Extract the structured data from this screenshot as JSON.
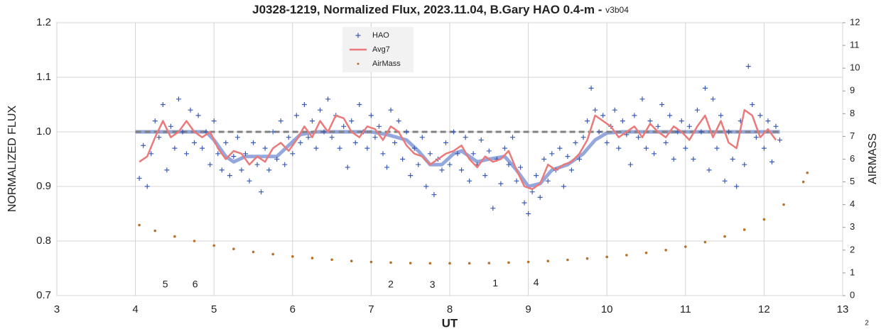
{
  "chart_data": {
    "type": "scatter",
    "title": "J0328-1219, Normalized Flux, 2023.11.04, B.Gary HAO 0.4-m -",
    "subtitle": "v3b04",
    "xlabel": "UT",
    "ylabel": "NORMALIZED FLUX",
    "y2label": "AIRMASS",
    "footnote": "2",
    "xlim": [
      3,
      13
    ],
    "xticks": [
      3,
      4,
      5,
      6,
      7,
      8,
      9,
      10,
      11,
      12,
      13
    ],
    "ylim": [
      0.7,
      1.2
    ],
    "yticks": [
      0.7,
      0.8,
      0.9,
      {
        "value": 1,
        "label": "1.0"
      },
      1.1,
      1.2
    ],
    "y2lim": [
      0,
      12
    ],
    "y2ticks": [
      0,
      1,
      2,
      3,
      4,
      5,
      6,
      7,
      8,
      9,
      10,
      11,
      12
    ],
    "grid": true,
    "legend": "top",
    "series": [
      {
        "name": "HAO",
        "kind": "scatter",
        "color": "#3b5bb5",
        "x": [
          4.05,
          4.1,
          4.15,
          4.2,
          4.25,
          4.3,
          4.35,
          4.4,
          4.45,
          4.5,
          4.55,
          4.6,
          4.65,
          4.7,
          4.75,
          4.8,
          4.85,
          4.9,
          4.95,
          5.0,
          5.05,
          5.1,
          5.15,
          5.2,
          5.25,
          5.3,
          5.35,
          5.4,
          5.45,
          5.5,
          5.55,
          5.6,
          5.65,
          5.7,
          5.75,
          5.8,
          5.85,
          5.9,
          5.95,
          6.0,
          6.05,
          6.1,
          6.15,
          6.2,
          6.25,
          6.3,
          6.35,
          6.4,
          6.45,
          6.5,
          6.55,
          6.6,
          6.65,
          6.7,
          6.75,
          6.8,
          6.85,
          6.9,
          6.95,
          7.0,
          7.05,
          7.1,
          7.15,
          7.2,
          7.25,
          7.3,
          7.35,
          7.4,
          7.45,
          7.5,
          7.55,
          7.6,
          7.65,
          7.7,
          7.75,
          7.8,
          7.85,
          7.9,
          7.95,
          8.0,
          8.05,
          8.1,
          8.15,
          8.2,
          8.25,
          8.3,
          8.35,
          8.4,
          8.45,
          8.5,
          8.55,
          8.6,
          8.65,
          8.7,
          8.75,
          8.8,
          8.85,
          8.9,
          8.95,
          9.0,
          9.05,
          9.1,
          9.15,
          9.2,
          9.25,
          9.3,
          9.35,
          9.4,
          9.45,
          9.5,
          9.55,
          9.6,
          9.65,
          9.7,
          9.75,
          9.8,
          9.85,
          9.9,
          9.95,
          10.0,
          10.05,
          10.1,
          10.15,
          10.2,
          10.25,
          10.3,
          10.35,
          10.4,
          10.45,
          10.5,
          10.55,
          10.6,
          10.65,
          10.7,
          10.75,
          10.8,
          10.85,
          10.9,
          10.95,
          11.0,
          11.05,
          11.1,
          11.15,
          11.2,
          11.25,
          11.3,
          11.35,
          11.4,
          11.45,
          11.5,
          11.55,
          11.6,
          11.65,
          11.7,
          11.75,
          11.8,
          11.85,
          11.9,
          11.95,
          12.0,
          12.05,
          12.1,
          12.15,
          12.2
        ],
        "values": [
          0.915,
          0.975,
          0.9,
          0.96,
          1.02,
          0.99,
          1.05,
          0.93,
          1.01,
          0.97,
          1.06,
          1.0,
          0.96,
          1.04,
          0.98,
          1.03,
          0.97,
          1.0,
          0.94,
          1.02,
          0.96,
          0.93,
          0.98,
          0.92,
          0.955,
          0.99,
          0.93,
          0.96,
          0.91,
          0.98,
          0.94,
          0.89,
          0.97,
          0.93,
          1.0,
          0.95,
          1.02,
          0.94,
          0.99,
          0.96,
          1.03,
          0.98,
          1.05,
          0.99,
          1.02,
          0.97,
          1.04,
          1.0,
          1.06,
          0.99,
          1.03,
          0.97,
          1.01,
          0.935,
          1.02,
          0.98,
          1.05,
          1.0,
          0.97,
          1.03,
          0.99,
          1.01,
          0.96,
          0.935,
          1.04,
          0.98,
          1.02,
          0.95,
          1.0,
          0.92,
          0.97,
          0.94,
          0.99,
          0.9,
          0.96,
          0.885,
          0.95,
          0.93,
          0.98,
          0.94,
          1.0,
          0.96,
          0.93,
          0.99,
          0.91,
          0.96,
          0.94,
          0.985,
          0.92,
          0.965,
          0.86,
          0.95,
          0.905,
          0.97,
          0.94,
          0.99,
          0.91,
          0.935,
          0.87,
          0.85,
          0.89,
          0.92,
          0.88,
          0.95,
          0.91,
          0.96,
          0.93,
          0.97,
          0.9,
          0.955,
          0.93,
          0.98,
          0.95,
          0.99,
          1.02,
          1.08,
          1.04,
          1.0,
          1.03,
          0.98,
          1.01,
          1.04,
          0.97,
          1.02,
          0.995,
          0.94,
          1.03,
          0.99,
          1.06,
          0.97,
          1.02,
          0.96,
          1.01,
          1.05,
          0.98,
          1.03,
          0.95,
          1.0,
          1.02,
          0.97,
          1.01,
          0.95,
          1.04,
          1.0,
          1.08,
          0.93,
          1.06,
          0.97,
          1.03,
          0.91,
          1.0,
          0.95,
          0.9,
          1.02,
          0.94,
          1.12,
          1.05,
          0.99,
          1.03,
          0.97,
          1.02,
          0.945,
          1.01,
          0.985
        ]
      },
      {
        "name": "Avg7",
        "kind": "line",
        "color": "#ea7a7a",
        "x": [
          4.05,
          4.15,
          4.25,
          4.35,
          4.45,
          4.55,
          4.65,
          4.75,
          4.85,
          4.95,
          5.05,
          5.15,
          5.25,
          5.35,
          5.45,
          5.55,
          5.65,
          5.75,
          5.85,
          5.95,
          6.05,
          6.15,
          6.25,
          6.35,
          6.45,
          6.55,
          6.65,
          6.75,
          6.85,
          6.95,
          7.05,
          7.15,
          7.25,
          7.35,
          7.45,
          7.55,
          7.65,
          7.75,
          7.85,
          7.95,
          8.05,
          8.15,
          8.25,
          8.35,
          8.45,
          8.55,
          8.65,
          8.75,
          8.85,
          8.95,
          9.05,
          9.15,
          9.25,
          9.35,
          9.45,
          9.55,
          9.65,
          9.75,
          9.85,
          9.95,
          10.05,
          10.15,
          10.25,
          10.35,
          10.45,
          10.55,
          10.65,
          10.75,
          10.85,
          10.95,
          11.05,
          11.15,
          11.25,
          11.35,
          11.45,
          11.55,
          11.65,
          11.75,
          11.85,
          11.95,
          12.05,
          12.15
        ],
        "values": [
          0.945,
          0.955,
          0.99,
          1.02,
          0.99,
          1.0,
          1.02,
          1.0,
          0.99,
          1.0,
          0.97,
          0.95,
          0.965,
          0.96,
          0.94,
          0.955,
          0.945,
          0.97,
          0.98,
          0.965,
          0.985,
          1.01,
          0.99,
          1.02,
          1.0,
          1.03,
          1.025,
          1.0,
          0.99,
          1.01,
          1.005,
          0.985,
          1.01,
          1.0,
          0.975,
          0.96,
          0.955,
          0.94,
          0.95,
          0.96,
          0.965,
          0.975,
          0.95,
          0.935,
          0.955,
          0.945,
          0.95,
          0.965,
          0.93,
          0.9,
          0.895,
          0.905,
          0.94,
          0.93,
          0.94,
          0.945,
          0.96,
          0.985,
          1.03,
          1.02,
          1.01,
          0.99,
          1.0,
          1.01,
          0.99,
          1.015,
          1.0,
          0.99,
          1.01,
          1.0,
          0.985,
          1.01,
          1.03,
          0.99,
          1.02,
          0.98,
          0.97,
          1.04,
          1.03,
          0.99,
          1.005,
          0.985
        ]
      },
      {
        "name": "AirMass",
        "kind": "dots",
        "color": "#b8702a",
        "axis": "y2",
        "x": [
          4.05,
          4.25,
          4.5,
          4.75,
          5.0,
          5.25,
          5.5,
          5.75,
          6.0,
          6.25,
          6.5,
          6.75,
          7.0,
          7.25,
          7.5,
          7.75,
          8.0,
          8.25,
          8.5,
          8.75,
          9.0,
          9.25,
          9.5,
          9.75,
          10.0,
          10.25,
          10.5,
          10.75,
          11.0,
          11.25,
          11.5,
          11.75,
          12.0,
          12.25,
          12.5,
          12.55
        ],
        "values": [
          3.1,
          2.85,
          2.6,
          2.4,
          2.2,
          2.05,
          1.92,
          1.82,
          1.72,
          1.65,
          1.58,
          1.52,
          1.48,
          1.45,
          1.43,
          1.42,
          1.42,
          1.42,
          1.43,
          1.45,
          1.48,
          1.52,
          1.57,
          1.63,
          1.7,
          1.78,
          1.88,
          2.0,
          2.15,
          2.35,
          2.6,
          2.9,
          3.35,
          4.0,
          5.0,
          5.4
        ]
      }
    ],
    "lines": [
      {
        "color": "#7b92d6",
        "x": [
          4.0,
          4.9,
          5.0,
          5.15,
          5.25,
          5.4,
          5.6,
          5.8,
          5.95,
          6.1,
          6.3,
          7.0,
          7.2,
          7.45,
          7.6,
          7.75,
          7.9,
          8.05,
          8.15,
          8.35,
          8.5,
          8.7,
          8.85,
          9.0,
          9.15,
          9.3,
          9.5,
          9.7,
          9.85,
          10.0,
          10.2,
          12.2
        ],
        "values": [
          1.0,
          1.0,
          0.985,
          0.955,
          0.945,
          0.955,
          0.955,
          0.955,
          0.975,
          0.995,
          1.0,
          1.0,
          0.995,
          0.985,
          0.965,
          0.94,
          0.94,
          0.96,
          0.965,
          0.945,
          0.95,
          0.955,
          0.93,
          0.9,
          0.905,
          0.93,
          0.94,
          0.96,
          0.985,
          0.998,
          1.0,
          1.0
        ]
      },
      {
        "color": "#808080",
        "dashed": true,
        "x": [
          4.0,
          12.2
        ],
        "values": [
          1.0,
          1.0
        ]
      }
    ],
    "annotations": [
      {
        "text": "5",
        "x": 4.38,
        "y": 0.72
      },
      {
        "text": "6",
        "x": 4.76,
        "y": 0.72
      },
      {
        "text": "2",
        "x": 7.25,
        "y": 0.72
      },
      {
        "text": "3",
        "x": 7.78,
        "y": 0.719
      },
      {
        "text": "1",
        "x": 8.58,
        "y": 0.722
      },
      {
        "text": "4",
        "x": 9.1,
        "y": 0.723
      }
    ]
  }
}
